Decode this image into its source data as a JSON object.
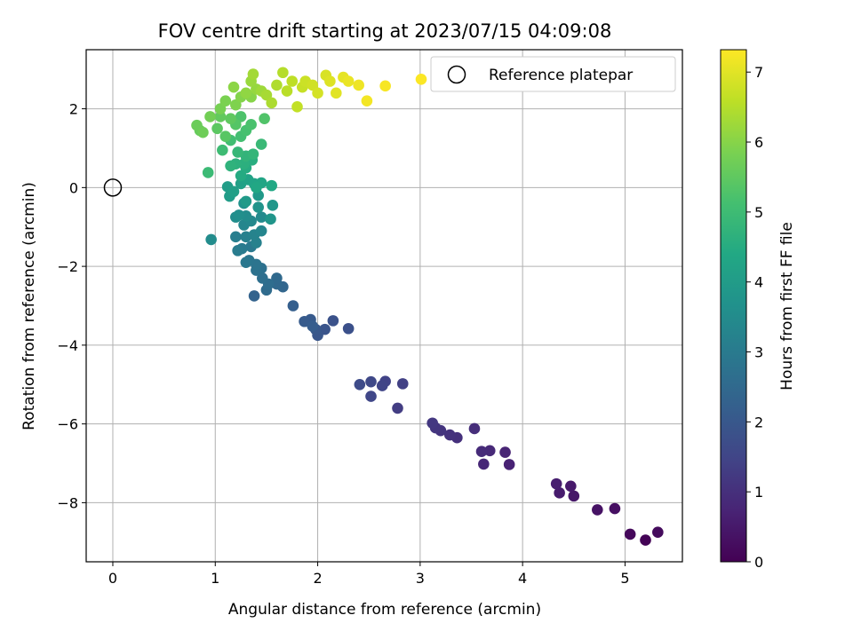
{
  "chart_data": {
    "type": "scatter",
    "title": "FOV centre drift starting at 2023/07/15 04:09:08",
    "xlabel": "Angular distance from reference (arcmin)",
    "ylabel": "Rotation from reference (arcmin)",
    "xlim": [
      -0.26,
      5.56
    ],
    "ylim": [
      -9.5,
      3.5
    ],
    "xticks": [
      0,
      1,
      2,
      3,
      4,
      5
    ],
    "yticks": [
      -8,
      -6,
      -4,
      -2,
      0,
      2
    ],
    "grid": true,
    "legend": {
      "placement": "top-right",
      "entries": [
        "Reference platepar"
      ]
    },
    "reference_point": {
      "x": 0,
      "y": 0
    },
    "colorbar": {
      "label": "Hours from first FF file",
      "min": 0,
      "max": 7.32,
      "ticks": [
        0,
        1,
        2,
        3,
        4,
        5,
        6,
        7
      ],
      "colormap": "viridis"
    },
    "points": [
      [
        5.2,
        -8.95,
        0.05
      ],
      [
        5.05,
        -8.8,
        0.15
      ],
      [
        5.32,
        -8.75,
        0.2
      ],
      [
        4.9,
        -8.15,
        0.3
      ],
      [
        4.73,
        -8.18,
        0.35
      ],
      [
        4.5,
        -7.83,
        0.45
      ],
      [
        4.47,
        -7.58,
        0.5
      ],
      [
        4.36,
        -7.75,
        0.55
      ],
      [
        4.33,
        -7.52,
        0.6
      ],
      [
        3.87,
        -7.03,
        0.7
      ],
      [
        3.83,
        -6.72,
        0.75
      ],
      [
        3.62,
        -7.02,
        0.8
      ],
      [
        3.68,
        -6.68,
        0.85
      ],
      [
        3.6,
        -6.7,
        0.9
      ],
      [
        3.53,
        -6.12,
        0.95
      ],
      [
        3.36,
        -6.35,
        1.0
      ],
      [
        3.29,
        -6.28,
        1.05
      ],
      [
        3.2,
        -6.17,
        1.1
      ],
      [
        3.15,
        -6.1,
        1.15
      ],
      [
        3.12,
        -5.98,
        1.2
      ],
      [
        2.78,
        -5.6,
        1.3
      ],
      [
        2.83,
        -4.98,
        1.4
      ],
      [
        2.66,
        -4.92,
        1.45
      ],
      [
        2.63,
        -5.03,
        1.5
      ],
      [
        2.52,
        -5.3,
        1.55
      ],
      [
        2.52,
        -4.93,
        1.6
      ],
      [
        2.41,
        -5.0,
        1.65
      ],
      [
        2.3,
        -3.58,
        1.8
      ],
      [
        2.15,
        -3.38,
        1.85
      ],
      [
        2.07,
        -3.6,
        1.9
      ],
      [
        2.0,
        -3.75,
        1.95
      ],
      [
        1.98,
        -3.6,
        2.0
      ],
      [
        1.93,
        -3.35,
        2.05
      ],
      [
        1.87,
        -3.4,
        2.1
      ],
      [
        1.95,
        -3.52,
        2.15
      ],
      [
        1.76,
        -3.0,
        2.2
      ],
      [
        1.38,
        -2.75,
        2.3
      ],
      [
        1.66,
        -2.52,
        2.4
      ],
      [
        1.6,
        -2.45,
        2.45
      ],
      [
        1.6,
        -2.3,
        2.5
      ],
      [
        1.5,
        -2.6,
        2.55
      ],
      [
        1.52,
        -2.45,
        2.6
      ],
      [
        1.46,
        -2.3,
        2.65
      ],
      [
        1.45,
        -2.05,
        2.7
      ],
      [
        1.4,
        -2.1,
        2.75
      ],
      [
        1.4,
        -1.95,
        2.8
      ],
      [
        1.33,
        -1.85,
        2.85
      ],
      [
        1.3,
        -1.9,
        2.9
      ],
      [
        1.35,
        -1.5,
        2.95
      ],
      [
        1.26,
        -1.55,
        3.0
      ],
      [
        1.22,
        -1.6,
        3.05
      ],
      [
        1.2,
        -1.25,
        3.1
      ],
      [
        1.3,
        -1.25,
        3.15
      ],
      [
        1.4,
        -1.4,
        3.2
      ],
      [
        1.38,
        -1.2,
        3.25
      ],
      [
        1.45,
        -1.1,
        3.3
      ],
      [
        1.28,
        -0.95,
        3.35
      ],
      [
        1.35,
        -0.85,
        3.4
      ],
      [
        1.45,
        -0.75,
        3.45
      ],
      [
        1.3,
        -0.72,
        3.5
      ],
      [
        1.2,
        -0.75,
        3.55
      ],
      [
        1.23,
        -0.7,
        3.6
      ],
      [
        0.96,
        -1.32,
        3.5
      ],
      [
        1.28,
        -0.4,
        3.7
      ],
      [
        1.42,
        -0.5,
        3.75
      ],
      [
        1.54,
        -0.8,
        3.8
      ],
      [
        1.56,
        -0.45,
        3.85
      ],
      [
        1.42,
        -0.2,
        3.9
      ],
      [
        1.3,
        -0.35,
        3.95
      ],
      [
        1.14,
        -0.22,
        4.0
      ],
      [
        1.12,
        0.02,
        4.05
      ],
      [
        1.18,
        -0.1,
        4.1
      ],
      [
        1.25,
        0.1,
        4.15
      ],
      [
        1.32,
        0.2,
        4.2
      ],
      [
        1.38,
        0.1,
        4.25
      ],
      [
        1.45,
        0.12,
        4.3
      ],
      [
        1.4,
        0.0,
        4.35
      ],
      [
        1.55,
        0.05,
        4.4
      ],
      [
        1.25,
        0.3,
        4.45
      ],
      [
        1.3,
        0.5,
        4.5
      ],
      [
        1.36,
        0.7,
        4.55
      ],
      [
        1.28,
        0.6,
        4.6
      ],
      [
        1.2,
        0.6,
        4.65
      ],
      [
        1.15,
        0.55,
        4.7
      ],
      [
        1.3,
        0.8,
        4.75
      ],
      [
        1.37,
        0.85,
        4.8
      ],
      [
        1.22,
        0.9,
        4.85
      ],
      [
        1.45,
        1.1,
        4.9
      ],
      [
        0.93,
        0.38,
        4.95
      ],
      [
        1.07,
        0.95,
        5.0
      ],
      [
        1.15,
        1.2,
        5.05
      ],
      [
        1.25,
        1.3,
        5.1
      ],
      [
        1.3,
        1.45,
        5.15
      ],
      [
        1.35,
        1.6,
        5.2
      ],
      [
        1.25,
        1.8,
        5.25
      ],
      [
        1.48,
        1.75,
        5.3
      ],
      [
        1.2,
        1.6,
        5.35
      ],
      [
        1.1,
        1.3,
        5.4
      ],
      [
        1.02,
        1.5,
        5.45
      ],
      [
        1.15,
        1.75,
        5.5
      ],
      [
        1.05,
        1.8,
        5.55
      ],
      [
        0.85,
        1.45,
        5.6
      ],
      [
        0.82,
        1.58,
        5.65
      ],
      [
        0.88,
        1.4,
        5.7
      ],
      [
        0.95,
        1.8,
        5.75
      ],
      [
        1.05,
        2.0,
        5.8
      ],
      [
        1.1,
        2.2,
        5.85
      ],
      [
        1.2,
        2.1,
        5.9
      ],
      [
        1.25,
        2.3,
        5.95
      ],
      [
        1.35,
        2.3,
        6.0
      ],
      [
        1.18,
        2.55,
        6.05
      ],
      [
        1.3,
        2.4,
        6.1
      ],
      [
        1.4,
        2.5,
        6.15
      ],
      [
        1.35,
        2.7,
        6.2
      ],
      [
        1.45,
        2.45,
        6.25
      ],
      [
        1.37,
        2.88,
        6.3
      ],
      [
        1.5,
        2.35,
        6.35
      ],
      [
        1.55,
        2.15,
        6.4
      ],
      [
        1.6,
        2.6,
        6.45
      ],
      [
        1.66,
        2.92,
        6.5
      ],
      [
        1.7,
        2.45,
        6.55
      ],
      [
        1.75,
        2.7,
        6.6
      ],
      [
        1.8,
        2.05,
        6.65
      ],
      [
        1.85,
        2.55,
        6.7
      ],
      [
        1.88,
        2.7,
        6.75
      ],
      [
        1.95,
        2.6,
        6.8
      ],
      [
        2.0,
        2.4,
        6.85
      ],
      [
        2.08,
        2.85,
        6.9
      ],
      [
        2.12,
        2.7,
        6.95
      ],
      [
        2.18,
        2.4,
        7.0
      ],
      [
        2.25,
        2.8,
        7.05
      ],
      [
        2.3,
        2.7,
        7.1
      ],
      [
        2.4,
        2.6,
        7.15
      ],
      [
        2.48,
        2.2,
        7.2
      ],
      [
        2.66,
        2.58,
        7.25
      ],
      [
        3.01,
        2.75,
        7.3
      ]
    ]
  }
}
